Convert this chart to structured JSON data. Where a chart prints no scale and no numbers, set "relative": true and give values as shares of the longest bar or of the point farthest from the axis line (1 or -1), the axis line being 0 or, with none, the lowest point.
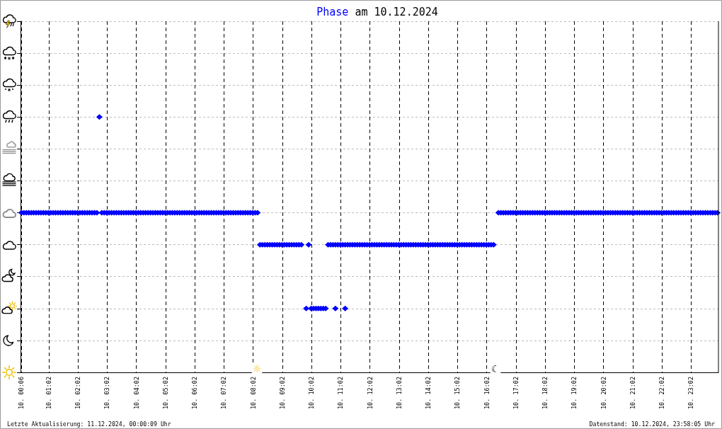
{
  "chart_data": {
    "type": "scatter",
    "title": "am 10.12.2024",
    "legend": "top",
    "relative": true,
    "grid": true,
    "marker": "diamond",
    "xlim": [
      "2024-12-10T00:04",
      "2024-12-10T23:58"
    ],
    "xticks": [
      {
        "value": "2024-12-10T00:06",
        "label": "10. 00:06"
      },
      {
        "value": "2024-12-10T01:02",
        "label": "10. 01:02"
      },
      {
        "value": "2024-12-10T02:02",
        "label": "10. 02:02"
      },
      {
        "value": "2024-12-10T03:02",
        "label": "10. 03:02"
      },
      {
        "value": "2024-12-10T04:02",
        "label": "10. 04:02"
      },
      {
        "value": "2024-12-10T05:02",
        "label": "10. 05:02"
      },
      {
        "value": "2024-12-10T06:02",
        "label": "10. 06:02"
      },
      {
        "value": "2024-12-10T07:02",
        "label": "10. 07:02"
      },
      {
        "value": "2024-12-10T08:02",
        "label": "10. 08:02"
      },
      {
        "value": "2024-12-10T09:02",
        "label": "10. 09:02"
      },
      {
        "value": "2024-12-10T10:02",
        "label": "10. 10:02"
      },
      {
        "value": "2024-12-10T11:02",
        "label": "10. 11:02"
      },
      {
        "value": "2024-12-10T12:02",
        "label": "10. 12:02"
      },
      {
        "value": "2024-12-10T13:02",
        "label": "10. 13:02"
      },
      {
        "value": "2024-12-10T14:02",
        "label": "10. 14:02"
      },
      {
        "value": "2024-12-10T15:02",
        "label": "10. 15:02"
      },
      {
        "value": "2024-12-10T16:02",
        "label": "10. 16:02"
      },
      {
        "value": "2024-12-10T17:02",
        "label": "10. 17:02"
      },
      {
        "value": "2024-12-10T18:02",
        "label": "10. 18:02"
      },
      {
        "value": "2024-12-10T19:02",
        "label": "10. 19:02"
      },
      {
        "value": "2024-12-10T20:02",
        "label": "10. 20:02"
      },
      {
        "value": "2024-12-10T21:02",
        "label": "10. 21:02"
      },
      {
        "value": "2024-12-10T22:02",
        "label": "10. 22:02"
      },
      {
        "value": "2024-12-10T23:02",
        "label": "10. 23:02"
      }
    ],
    "series": [
      {
        "name": "Phase",
        "color": "#0000ff",
        "x": [
          "2024-12-10T00:06",
          "2024-12-10T00:11",
          "2024-12-10T00:16",
          "2024-12-10T00:21",
          "2024-12-10T00:26",
          "2024-12-10T00:31",
          "2024-12-10T00:36",
          "2024-12-10T00:41",
          "2024-12-10T00:46",
          "2024-12-10T00:51",
          "2024-12-10T00:56",
          "2024-12-10T01:01",
          "2024-12-10T01:06",
          "2024-12-10T01:11",
          "2024-12-10T01:16",
          "2024-12-10T01:21",
          "2024-12-10T01:26",
          "2024-12-10T01:31",
          "2024-12-10T01:36",
          "2024-12-10T01:41",
          "2024-12-10T01:46",
          "2024-12-10T01:51",
          "2024-12-10T01:56",
          "2024-12-10T02:01",
          "2024-12-10T02:06",
          "2024-12-10T02:11",
          "2024-12-10T02:16",
          "2024-12-10T02:21",
          "2024-12-10T02:26",
          "2024-12-10T02:31",
          "2024-12-10T02:36",
          "2024-12-10T02:41",
          "2024-12-10T02:46",
          "2024-12-10T02:51",
          "2024-12-10T02:56",
          "2024-12-10T03:01",
          "2024-12-10T03:06",
          "2024-12-10T03:11",
          "2024-12-10T03:16",
          "2024-12-10T03:21",
          "2024-12-10T03:26",
          "2024-12-10T03:31",
          "2024-12-10T03:36",
          "2024-12-10T03:41",
          "2024-12-10T03:46",
          "2024-12-10T03:51",
          "2024-12-10T03:56",
          "2024-12-10T04:01",
          "2024-12-10T04:06",
          "2024-12-10T04:11",
          "2024-12-10T04:16",
          "2024-12-10T04:21",
          "2024-12-10T04:26",
          "2024-12-10T04:31",
          "2024-12-10T04:36",
          "2024-12-10T04:41",
          "2024-12-10T04:46",
          "2024-12-10T04:51",
          "2024-12-10T04:56",
          "2024-12-10T05:01",
          "2024-12-10T05:06",
          "2024-12-10T05:11",
          "2024-12-10T05:16",
          "2024-12-10T05:21",
          "2024-12-10T05:26",
          "2024-12-10T05:31",
          "2024-12-10T05:36",
          "2024-12-10T05:41",
          "2024-12-10T05:46",
          "2024-12-10T05:51",
          "2024-12-10T05:56",
          "2024-12-10T06:01",
          "2024-12-10T06:06",
          "2024-12-10T06:11",
          "2024-12-10T06:16",
          "2024-12-10T06:21",
          "2024-12-10T06:26",
          "2024-12-10T06:31",
          "2024-12-10T06:36",
          "2024-12-10T06:41",
          "2024-12-10T06:46",
          "2024-12-10T06:51",
          "2024-12-10T06:56",
          "2024-12-10T07:01",
          "2024-12-10T07:06",
          "2024-12-10T07:11",
          "2024-12-10T07:16",
          "2024-12-10T07:21",
          "2024-12-10T07:26",
          "2024-12-10T07:31",
          "2024-12-10T07:36",
          "2024-12-10T07:41",
          "2024-12-10T07:46",
          "2024-12-10T07:51",
          "2024-12-10T07:56",
          "2024-12-10T08:01",
          "2024-12-10T08:06",
          "2024-12-10T08:11",
          "2024-12-10T08:16",
          "2024-12-10T08:21",
          "2024-12-10T08:26",
          "2024-12-10T08:31",
          "2024-12-10T08:36",
          "2024-12-10T08:41",
          "2024-12-10T08:46",
          "2024-12-10T08:51",
          "2024-12-10T08:56",
          "2024-12-10T09:01",
          "2024-12-10T09:06",
          "2024-12-10T09:11",
          "2024-12-10T09:16",
          "2024-12-10T09:21",
          "2024-12-10T09:26",
          "2024-12-10T09:31",
          "2024-12-10T09:36",
          "2024-12-10T09:41",
          "2024-12-10T09:51",
          "2024-12-10T09:56",
          "2024-12-10T10:01",
          "2024-12-10T10:06",
          "2024-12-10T10:11",
          "2024-12-10T10:16",
          "2024-12-10T10:21",
          "2024-12-10T10:26",
          "2024-12-10T10:31",
          "2024-12-10T10:36",
          "2024-12-10T10:41",
          "2024-12-10T10:46",
          "2024-12-10T10:51",
          "2024-12-10T10:51",
          "2024-12-10T10:56",
          "2024-12-10T11:01",
          "2024-12-10T11:06",
          "2024-12-10T11:11",
          "2024-12-10T11:11",
          "2024-12-10T11:16",
          "2024-12-10T11:21",
          "2024-12-10T11:26",
          "2024-12-10T11:31",
          "2024-12-10T11:36",
          "2024-12-10T11:41",
          "2024-12-10T11:46",
          "2024-12-10T11:51",
          "2024-12-10T11:56",
          "2024-12-10T12:01",
          "2024-12-10T12:06",
          "2024-12-10T12:11",
          "2024-12-10T12:16",
          "2024-12-10T12:21",
          "2024-12-10T12:26",
          "2024-12-10T12:31",
          "2024-12-10T12:36",
          "2024-12-10T12:41",
          "2024-12-10T12:46",
          "2024-12-10T12:51",
          "2024-12-10T12:56",
          "2024-12-10T13:01",
          "2024-12-10T13:06",
          "2024-12-10T13:11",
          "2024-12-10T13:16",
          "2024-12-10T13:21",
          "2024-12-10T13:26",
          "2024-12-10T13:31",
          "2024-12-10T13:36",
          "2024-12-10T13:41",
          "2024-12-10T13:46",
          "2024-12-10T13:51",
          "2024-12-10T13:56",
          "2024-12-10T14:01",
          "2024-12-10T14:06",
          "2024-12-10T14:11",
          "2024-12-10T14:16",
          "2024-12-10T14:21",
          "2024-12-10T14:26",
          "2024-12-10T14:31",
          "2024-12-10T14:36",
          "2024-12-10T14:41",
          "2024-12-10T14:46",
          "2024-12-10T14:51",
          "2024-12-10T14:56",
          "2024-12-10T15:01",
          "2024-12-10T15:06",
          "2024-12-10T15:11",
          "2024-12-10T15:16",
          "2024-12-10T15:21",
          "2024-12-10T15:26",
          "2024-12-10T15:31",
          "2024-12-10T15:36",
          "2024-12-10T15:41",
          "2024-12-10T15:46",
          "2024-12-10T15:51",
          "2024-12-10T15:56",
          "2024-12-10T16:01",
          "2024-12-10T16:06",
          "2024-12-10T16:11",
          "2024-12-10T16:16",
          "2024-12-10T16:26",
          "2024-12-10T16:31",
          "2024-12-10T16:36",
          "2024-12-10T16:41",
          "2024-12-10T16:46",
          "2024-12-10T16:51",
          "2024-12-10T16:56",
          "2024-12-10T17:01",
          "2024-12-10T17:06",
          "2024-12-10T17:11",
          "2024-12-10T17:16",
          "2024-12-10T17:21",
          "2024-12-10T17:26",
          "2024-12-10T17:31",
          "2024-12-10T17:36",
          "2024-12-10T17:41",
          "2024-12-10T17:46",
          "2024-12-10T17:51",
          "2024-12-10T17:56",
          "2024-12-10T18:01",
          "2024-12-10T18:06",
          "2024-12-10T18:11",
          "2024-12-10T18:16",
          "2024-12-10T18:21",
          "2024-12-10T18:26",
          "2024-12-10T18:31",
          "2024-12-10T18:36",
          "2024-12-10T18:41",
          "2024-12-10T18:46",
          "2024-12-10T18:51",
          "2024-12-10T18:56",
          "2024-12-10T19:01",
          "2024-12-10T19:06",
          "2024-12-10T19:11",
          "2024-12-10T19:16",
          "2024-12-10T19:21",
          "2024-12-10T19:26",
          "2024-12-10T19:31",
          "2024-12-10T19:36",
          "2024-12-10T19:41",
          "2024-12-10T19:46",
          "2024-12-10T19:51",
          "2024-12-10T19:56",
          "2024-12-10T20:01",
          "2024-12-10T20:06",
          "2024-12-10T20:11",
          "2024-12-10T20:16",
          "2024-12-10T20:21",
          "2024-12-10T20:26",
          "2024-12-10T20:31",
          "2024-12-10T20:36",
          "2024-12-10T20:41",
          "2024-12-10T20:46",
          "2024-12-10T20:51",
          "2024-12-10T20:56",
          "2024-12-10T21:01",
          "2024-12-10T21:06",
          "2024-12-10T21:11",
          "2024-12-10T21:16",
          "2024-12-10T21:21",
          "2024-12-10T21:26",
          "2024-12-10T21:31",
          "2024-12-10T21:36",
          "2024-12-10T21:41",
          "2024-12-10T21:46",
          "2024-12-10T21:51",
          "2024-12-10T21:56",
          "2024-12-10T22:01",
          "2024-12-10T22:06",
          "2024-12-10T22:11",
          "2024-12-10T22:16",
          "2024-12-10T22:21",
          "2024-12-10T22:26",
          "2024-12-10T22:31",
          "2024-12-10T22:36",
          "2024-12-10T22:41",
          "2024-12-10T22:46",
          "2024-12-10T22:51",
          "2024-12-10T22:56",
          "2024-12-10T23:01",
          "2024-12-10T23:06",
          "2024-12-10T23:11",
          "2024-12-10T23:16",
          "2024-12-10T23:21",
          "2024-12-10T23:26",
          "2024-12-10T23:31",
          "2024-12-10T23:36",
          "2024-12-10T23:41",
          "2024-12-10T23:46",
          "2024-12-10T23:51",
          "2024-12-10T23:56"
        ],
        "values": [
          0.625,
          0.625,
          0.625,
          0.625,
          0.625,
          0.625,
          0.625,
          0.625,
          0.625,
          0.625,
          0.625,
          0.625,
          0.625,
          0.625,
          0.625,
          0.625,
          0.625,
          0.625,
          0.625,
          0.625,
          0.625,
          0.625,
          0.625,
          0.625,
          0.625,
          0.625,
          0.625,
          0.625,
          0.625,
          0.625,
          0.625,
          0.625,
          1,
          0.625,
          0.625,
          0.625,
          0.625,
          0.625,
          0.625,
          0.625,
          0.625,
          0.625,
          0.625,
          0.625,
          0.625,
          0.625,
          0.625,
          0.625,
          0.625,
          0.625,
          0.625,
          0.625,
          0.625,
          0.625,
          0.625,
          0.625,
          0.625,
          0.625,
          0.625,
          0.625,
          0.625,
          0.625,
          0.625,
          0.625,
          0.625,
          0.625,
          0.625,
          0.625,
          0.625,
          0.625,
          0.625,
          0.625,
          0.625,
          0.625,
          0.625,
          0.625,
          0.625,
          0.625,
          0.625,
          0.625,
          0.625,
          0.625,
          0.625,
          0.625,
          0.625,
          0.625,
          0.625,
          0.625,
          0.625,
          0.625,
          0.625,
          0.625,
          0.625,
          0.625,
          0.625,
          0.625,
          0.625,
          0.625,
          0.5,
          0.5,
          0.5,
          0.5,
          0.5,
          0.5,
          0.5,
          0.5,
          0.5,
          0.5,
          0.5,
          0.5,
          0.5,
          0.5,
          0.5,
          0.5,
          0.5,
          0.5,
          0.25,
          0.5,
          0.25,
          0.25,
          0.25,
          0.25,
          0.25,
          0.25,
          0.25,
          0.5,
          0.5,
          0.5,
          0.25,
          0.5,
          0.5,
          0.5,
          0.5,
          0.25,
          0.5,
          0.5,
          0.5,
          0.5,
          0.5,
          0.5,
          0.5,
          0.5,
          0.5,
          0.5,
          0.5,
          0.5,
          0.5,
          0.5,
          0.5,
          0.5,
          0.5,
          0.5,
          0.5,
          0.5,
          0.5,
          0.5,
          0.5,
          0.5,
          0.5,
          0.5,
          0.5,
          0.5,
          0.5,
          0.5,
          0.5,
          0.5,
          0.5,
          0.5,
          0.5,
          0.5,
          0.5,
          0.5,
          0.5,
          0.5,
          0.5,
          0.5,
          0.5,
          0.5,
          0.5,
          0.5,
          0.5,
          0.5,
          0.5,
          0.5,
          0.5,
          0.5,
          0.5,
          0.5,
          0.5,
          0.5,
          0.5,
          0.5,
          0.5,
          0.5,
          0.5,
          0.5,
          0.625,
          0.625,
          0.625,
          0.625,
          0.625,
          0.625,
          0.625,
          0.625,
          0.625,
          0.625,
          0.625,
          0.625,
          0.625,
          0.625,
          0.625,
          0.625,
          0.625,
          0.625,
          0.625,
          0.625,
          0.625,
          0.625,
          0.625,
          0.625,
          0.625,
          0.625,
          0.625,
          0.625,
          0.625,
          0.625,
          0.625,
          0.625,
          0.625,
          0.625,
          0.625,
          0.625,
          0.625,
          0.625,
          0.625,
          0.625,
          0.625,
          0.625,
          0.625,
          0.625,
          0.625,
          0.625,
          0.625,
          0.625,
          0.625,
          0.625,
          0.625,
          0.625,
          0.625,
          0.625,
          0.625,
          0.625,
          0.625,
          0.625,
          0.625,
          0.625,
          0.625,
          0.625,
          0.625,
          0.625,
          0.625,
          0.625,
          0.625,
          0.625,
          0.625,
          0.625,
          0.625,
          0.625,
          0.625,
          0.625,
          0.625,
          0.625,
          0.625,
          0.625,
          0.625,
          0.625,
          0.625,
          0.625,
          0.625,
          0.625,
          0.625,
          0.625,
          0.625,
          0.625,
          0.625,
          0.625,
          0.625
        ]
      }
    ],
    "annotations": [
      "Letzte Aktualisierung: 11.12.2024, 00:00:09 Uhr",
      "Datenstand: 10.12.2024, 23:58:05 Uhr",
      "☼",
      "☾"
    ]
  }
}
